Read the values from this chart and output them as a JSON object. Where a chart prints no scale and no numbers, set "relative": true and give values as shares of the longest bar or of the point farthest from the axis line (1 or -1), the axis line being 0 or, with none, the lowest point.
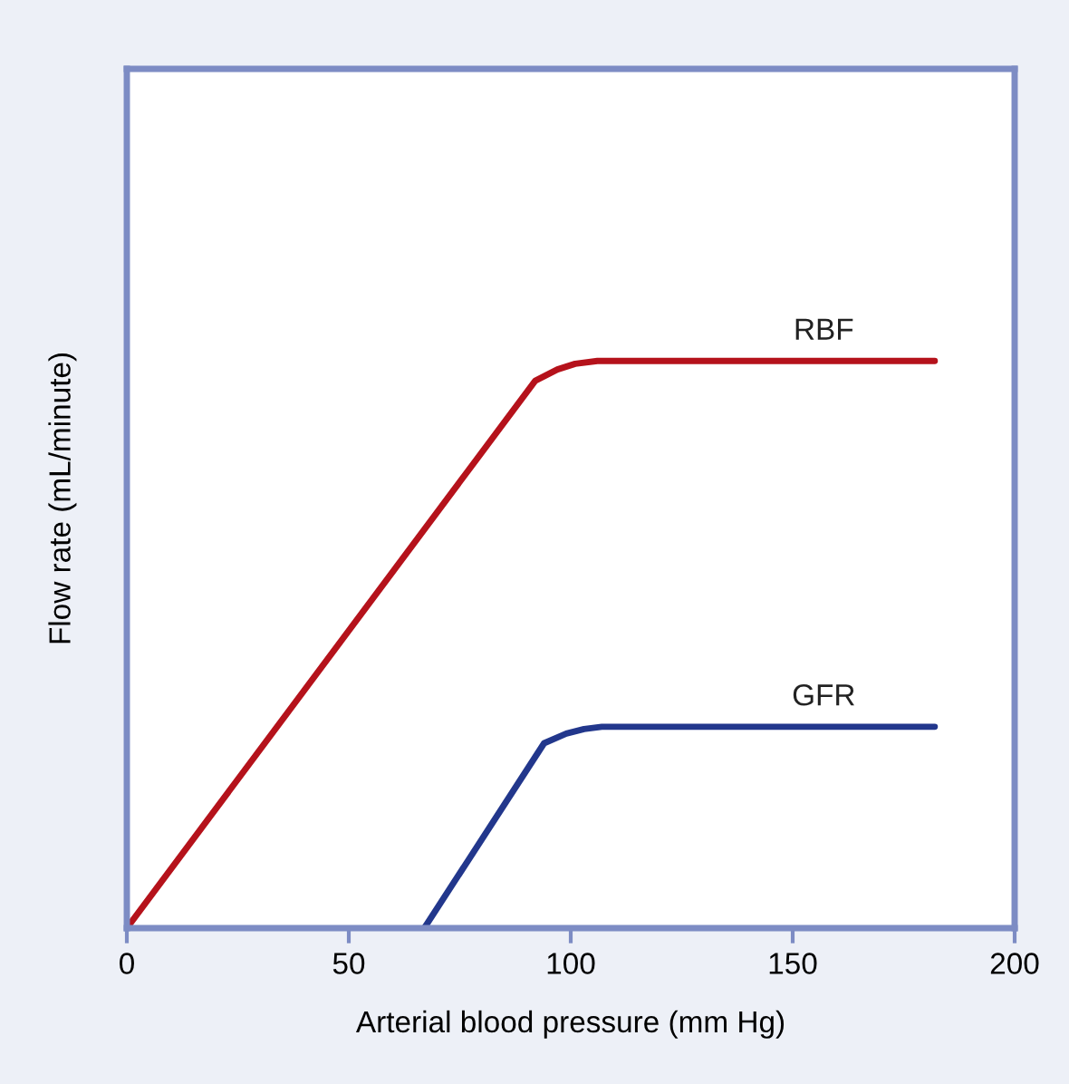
{
  "chart_data": {
    "type": "line",
    "relative": true,
    "xlabel": "Arterial blood pressure (mm Hg)",
    "ylabel": "Flow rate (mL/minute)",
    "xlim": [
      0,
      200
    ],
    "xticks": [
      0,
      50,
      100,
      150,
      200
    ],
    "tick_labels": "x",
    "grid": false,
    "legend": false,
    "marker": "none",
    "line_style": "solid",
    "series": [
      {
        "name": "RBF",
        "color": "#b5121b",
        "x": [
          0,
          92,
          97,
          101,
          106,
          112,
          182
        ],
        "values": [
          0,
          0.965,
          0.985,
          0.995,
          1.0,
          1.0,
          1.0
        ]
      },
      {
        "name": "GFR",
        "color": "#22378c",
        "x": [
          67,
          94,
          99,
          103,
          107,
          112,
          182
        ],
        "values": [
          0,
          0.326,
          0.343,
          0.351,
          0.355,
          0.355,
          0.355
        ]
      }
    ]
  }
}
